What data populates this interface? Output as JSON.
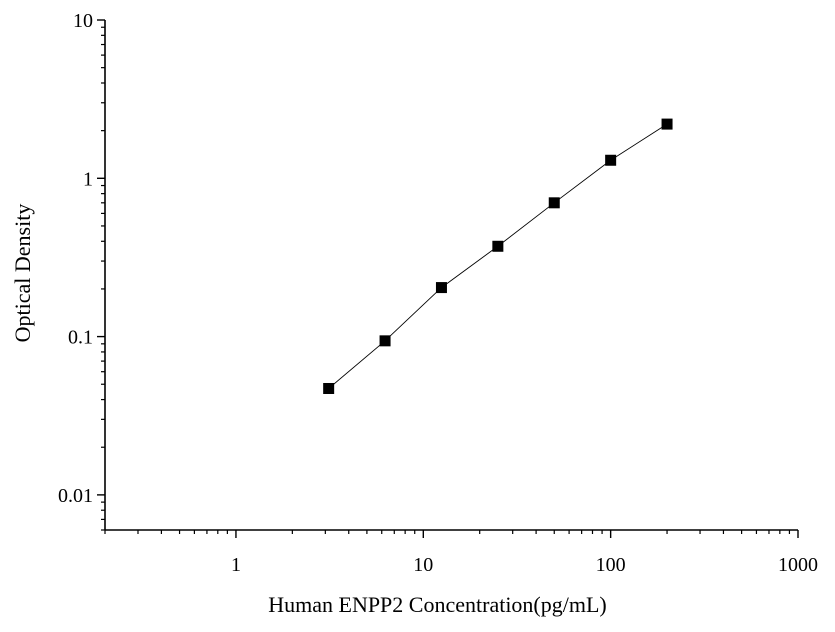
{
  "chart_data": {
    "type": "scatter",
    "xscale": "log",
    "yscale": "log",
    "xlabel": "Human ENPP2 Concentration(pg/mL)",
    "ylabel": "Optical Density",
    "xlim": [
      0.2,
      1000
    ],
    "ylim": [
      0.006,
      10
    ],
    "x_ticks": [
      1,
      10,
      100,
      1000
    ],
    "x_tick_labels": [
      "1",
      "10",
      "100",
      "1000"
    ],
    "y_ticks": [
      0.01,
      0.1,
      1,
      10
    ],
    "y_tick_labels": [
      "0.01",
      "0.1",
      "1",
      "10"
    ],
    "grid": false,
    "marker": "square",
    "series": [
      {
        "x": [
          3.125,
          6.25,
          12.5,
          25,
          50,
          100,
          200
        ],
        "y": [
          0.047,
          0.094,
          0.204,
          0.372,
          0.7,
          1.3,
          2.2
        ],
        "color": "#000000",
        "line": true
      }
    ]
  }
}
